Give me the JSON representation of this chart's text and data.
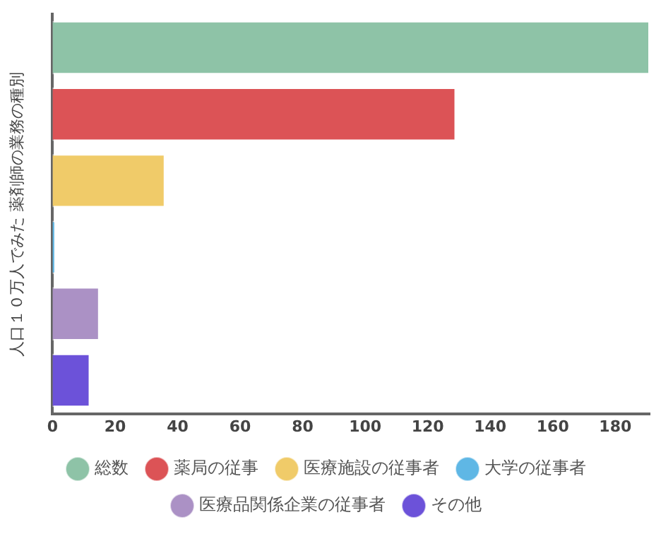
{
  "chart_data": {
    "type": "bar",
    "orientation": "horizontal",
    "ylabel": "人口１０万人でみた 薬剤師の業務の種別",
    "categories": [
      null,
      null,
      null,
      null,
      null,
      null
    ],
    "series": [
      {
        "name": "総数",
        "color": "#8ec3a7",
        "values": [
          191,
          null,
          null,
          null,
          null,
          null
        ]
      },
      {
        "name": "薬局の従事",
        "color": "#dc5356",
        "values": [
          null,
          129,
          null,
          null,
          null,
          null
        ]
      },
      {
        "name": "医療施設の従事者",
        "color": "#f0cb69",
        "values": [
          null,
          null,
          36,
          null,
          null,
          null
        ]
      },
      {
        "name": "大学の従事者",
        "color": "#5fb7e5",
        "values": [
          null,
          null,
          null,
          1,
          null,
          null
        ]
      },
      {
        "name": "医療品関係企業の従事者",
        "color": "#ab91c5",
        "values": [
          null,
          null,
          null,
          null,
          15,
          null
        ]
      },
      {
        "name": "その他",
        "color": "#6c52d9",
        "values": [
          null,
          null,
          null,
          null,
          null,
          12
        ]
      }
    ],
    "xlim": [
      0,
      191
    ],
    "xticks": [
      0,
      20,
      40,
      60,
      80,
      100,
      120,
      140,
      160,
      180
    ],
    "grid": false,
    "legend": "bottom"
  }
}
